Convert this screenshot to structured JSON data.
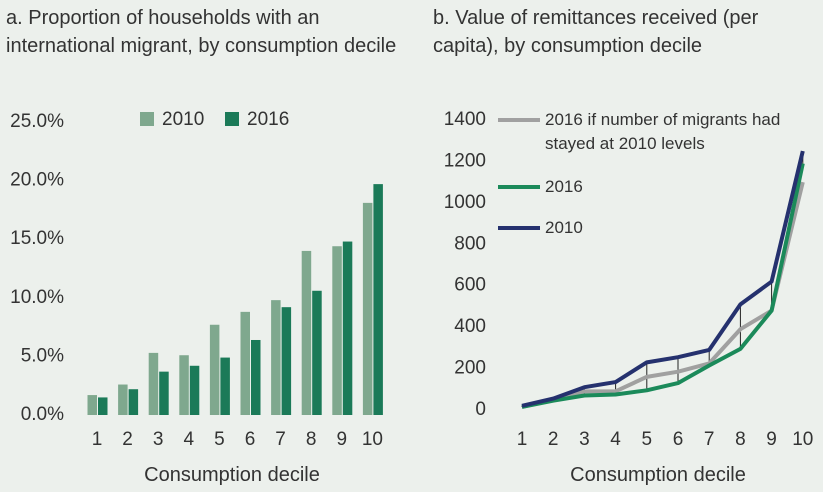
{
  "chart_data": [
    {
      "type": "bar",
      "title": "a. Proportion of households with an international migrant, by consumption decile",
      "x_label": "Consumption decile",
      "categories": [
        "1",
        "2",
        "3",
        "4",
        "5",
        "6",
        "7",
        "8",
        "9",
        "10"
      ],
      "series": [
        {
          "name": "2010",
          "color": "#7fa88e",
          "values": [
            1.7,
            2.6,
            5.3,
            5.1,
            7.7,
            8.8,
            9.8,
            14.0,
            14.4,
            18.1
          ]
        },
        {
          "name": "2016",
          "color": "#1b7a58",
          "values": [
            1.5,
            2.2,
            3.7,
            4.2,
            4.9,
            6.4,
            9.2,
            10.6,
            14.8,
            19.7
          ]
        }
      ],
      "ylim": [
        0,
        25
      ],
      "yticks": [
        {
          "value": 0,
          "label": "0.0%"
        },
        {
          "value": 5,
          "label": "5.0%"
        },
        {
          "value": 10,
          "label": "10.0%"
        },
        {
          "value": 15,
          "label": "15.0%"
        },
        {
          "value": 20,
          "label": "20.0%"
        },
        {
          "value": 25,
          "label": "25.0%"
        }
      ]
    },
    {
      "type": "line",
      "title": "b. Value of remittances received (per capita), by consumption decile",
      "x_label": "Consumption decile",
      "categories": [
        "1",
        "2",
        "3",
        "4",
        "5",
        "6",
        "7",
        "8",
        "9",
        "10"
      ],
      "series": [
        {
          "name": "2016 if number of migrants had stayed at 2010 levels",
          "color": "#a0a0a0",
          "values": [
            15,
            50,
            90,
            90,
            160,
            185,
            225,
            390,
            480,
            1100
          ]
        },
        {
          "name": "2016",
          "color": "#1b8a5a",
          "values": [
            15,
            45,
            70,
            75,
            95,
            130,
            215,
            295,
            480,
            1190
          ]
        },
        {
          "name": "2010",
          "color": "#25316e",
          "values": [
            20,
            55,
            110,
            135,
            230,
            255,
            290,
            510,
            620,
            1250
          ]
        }
      ],
      "drop_lines": true,
      "ylim": [
        0,
        1400
      ],
      "yticks": [
        0,
        200,
        400,
        600,
        800,
        1000,
        1200,
        1400
      ]
    }
  ]
}
